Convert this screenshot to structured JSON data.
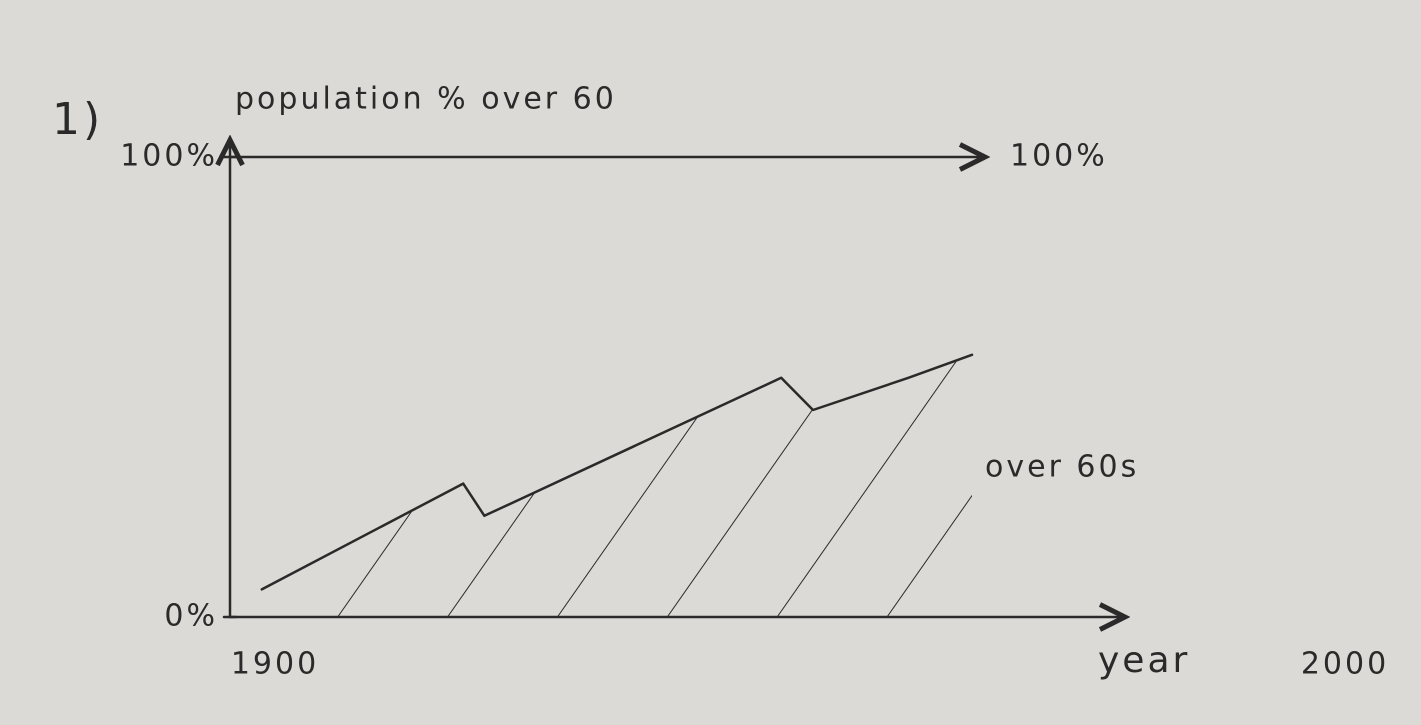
{
  "chart_data": {
    "type": "area",
    "number": "1)",
    "y_label": "population % over 60",
    "x_label": "year",
    "x": [
      1903,
      1922,
      1924,
      1952,
      1955,
      1964,
      1970
    ],
    "series": [
      {
        "name": "over 60s",
        "color": "#2a2a2a",
        "values": [
          6,
          29,
          22,
          52,
          45,
          52,
          57
        ]
      }
    ],
    "xlim": [
      1900,
      2000
    ],
    "ylim": [
      0,
      100
    ],
    "xticks": [
      1900,
      2000
    ],
    "yticks": [
      {
        "value": 0,
        "label": "0%"
      },
      {
        "value": 100,
        "label": "100%"
      }
    ],
    "reference_line": {
      "value": 100,
      "label": "100%"
    },
    "hatch": true
  }
}
